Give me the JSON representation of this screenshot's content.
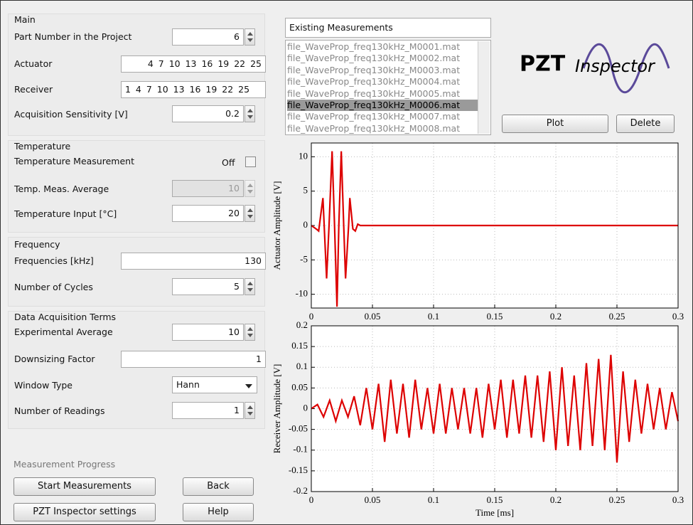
{
  "panels": [
    {
      "title": "Main",
      "fields": [
        {
          "label": "Part Number in the Project",
          "value": "6"
        },
        {
          "label": "Actuator",
          "value": "4 7 10 13 16 19 22 25"
        },
        {
          "label": "Receiver",
          "value": "1 4 7 10 13 16 19 22 25"
        },
        {
          "label": "Acquisition Sensitivity [V]",
          "value": "0.2"
        }
      ]
    },
    {
      "title": "Temperature",
      "fields": [
        {
          "label": "Temperature Measurement",
          "value": "Off"
        },
        {
          "label": "Temp. Meas. Average",
          "value": "10"
        },
        {
          "label": "Temperature Input [°C]",
          "value": "20"
        }
      ]
    },
    {
      "title": "Frequency",
      "fields": [
        {
          "label": "Frequencies [kHz]",
          "value": "130"
        },
        {
          "label": "Number of Cycles",
          "value": "5"
        }
      ]
    },
    {
      "title": "Data Acquisition Terms",
      "fields": [
        {
          "label": "Experimental Average",
          "value": "10"
        },
        {
          "label": "Downsizing Factor",
          "value": "1"
        },
        {
          "label": "Window Type",
          "value": "Hann"
        },
        {
          "label": "Number of Readings",
          "value": "1"
        }
      ]
    }
  ],
  "progress": {
    "label": "Measurement Progress",
    "buttons": [
      "Start Measurements",
      "Back",
      "PZT Inspector settings",
      "Help"
    ]
  },
  "measurements": {
    "title": "Existing Measurements",
    "selected": 5,
    "items": [
      "file_WaveProp_freq130kHz_M0001.mat",
      "file_WaveProp_freq130kHz_M0002.mat",
      "file_WaveProp_freq130kHz_M0003.mat",
      "file_WaveProp_freq130kHz_M0004.mat",
      "file_WaveProp_freq130kHz_M0005.mat",
      "file_WaveProp_freq130kHz_M0006.mat",
      "file_WaveProp_freq130kHz_M0007.mat",
      "file_WaveProp_freq130kHz_M0008.mat"
    ],
    "buttons": [
      "Plot",
      "Delete"
    ]
  },
  "logo": {
    "main": "PZT",
    "sub": "Inspector"
  },
  "chart_data": [
    {
      "type": "line",
      "y_label": "Actuator Amplitude [V]",
      "color": "#dd0000",
      "grid": true,
      "x": [
        0,
        0.004,
        0.006,
        0.0095,
        0.0125,
        0.0145,
        0.017,
        0.019,
        0.021,
        0.0225,
        0.0245,
        0.0265,
        0.028,
        0.0305,
        0.0315,
        0.034,
        0.036,
        0.038,
        0.04,
        0.3
      ],
      "values": [
        0,
        -0.5,
        -0.8,
        4,
        -7.7,
        0,
        10.8,
        0,
        -11.8,
        0,
        10.8,
        0,
        -7.7,
        0,
        4,
        -0.5,
        -0.8,
        0.2,
        0,
        0
      ],
      "xlim": [
        0,
        0.3
      ],
      "xticks": [
        0,
        0.05,
        0.1,
        0.15,
        0.2,
        0.25,
        0.3
      ],
      "ylim": [
        -12,
        12
      ],
      "yticks": [
        -10,
        -5,
        0,
        5,
        10
      ]
    },
    {
      "type": "line",
      "x_label": "Time [ms]",
      "y_label": "Receiver Amplitude [V]",
      "color": "#dd0000",
      "grid": true,
      "x": [
        0,
        0.005,
        0.01,
        0.015,
        0.02,
        0.025,
        0.03,
        0.035,
        0.04,
        0.045,
        0.05,
        0.055,
        0.06,
        0.065,
        0.07,
        0.075,
        0.08,
        0.085,
        0.09,
        0.095,
        0.1,
        0.105,
        0.11,
        0.115,
        0.12,
        0.125,
        0.13,
        0.135,
        0.14,
        0.145,
        0.15,
        0.155,
        0.16,
        0.165,
        0.17,
        0.175,
        0.18,
        0.185,
        0.19,
        0.195,
        0.2,
        0.205,
        0.21,
        0.215,
        0.22,
        0.225,
        0.23,
        0.235,
        0.24,
        0.245,
        0.25,
        0.255,
        0.26,
        0.265,
        0.27,
        0.275,
        0.28,
        0.285,
        0.29,
        0.295,
        0.3
      ],
      "values": [
        0,
        0.01,
        -0.02,
        0.02,
        -0.03,
        0.02,
        -0.02,
        0.03,
        -0.04,
        0.05,
        -0.05,
        0.06,
        -0.08,
        0.07,
        -0.06,
        0.06,
        -0.07,
        0.07,
        -0.05,
        0.05,
        -0.06,
        0.06,
        -0.06,
        0.05,
        -0.05,
        0.05,
        -0.06,
        0.05,
        -0.07,
        0.06,
        -0.05,
        0.07,
        -0.07,
        0.07,
        -0.06,
        0.08,
        -0.07,
        0.08,
        -0.08,
        0.09,
        -0.1,
        0.1,
        -0.09,
        0.08,
        -0.1,
        0.11,
        -0.09,
        0.12,
        -0.1,
        0.13,
        -0.13,
        0.09,
        -0.08,
        0.07,
        -0.06,
        0.06,
        -0.05,
        0.05,
        -0.05,
        0.04,
        -0.03
      ],
      "xlim": [
        0,
        0.3
      ],
      "xticks": [
        0,
        0.05,
        0.1,
        0.15,
        0.2,
        0.25,
        0.3
      ],
      "ylim": [
        -0.2,
        0.2
      ],
      "yticks": [
        -0.2,
        -0.15,
        -0.1,
        -0.05,
        0,
        0.05,
        0.1,
        0.15,
        0.2
      ]
    }
  ]
}
